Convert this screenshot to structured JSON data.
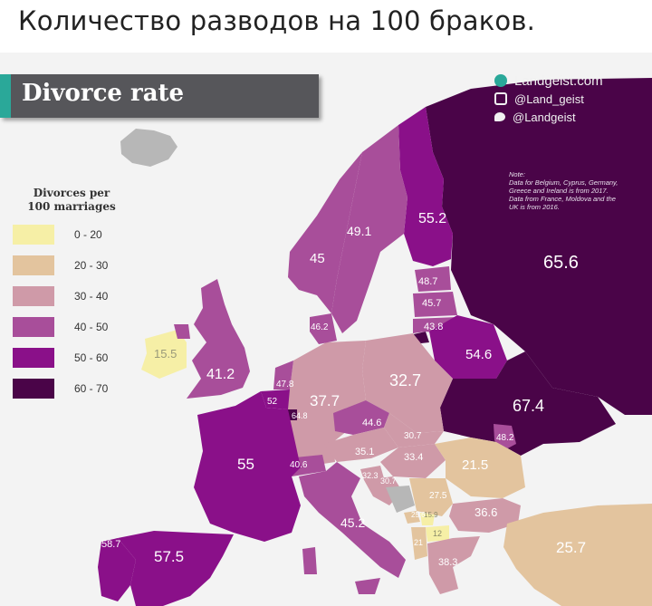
{
  "caption": "Количество разводов на 100 браков.",
  "banner": {
    "title": "Divorce rate"
  },
  "brand": {
    "site": "Landgeist.com",
    "handles": [
      {
        "icon": "instagram-icon",
        "text": "@Land_geist"
      },
      {
        "icon": "twitter-icon",
        "text": "@Landgeist"
      }
    ]
  },
  "note": {
    "heading": "Note:",
    "lines": [
      "Data for Belgium, Cyprus, Germany,",
      "Greece and Ireland is from 2017.",
      "Data from France, Moldova and the",
      "UK is from 2016."
    ]
  },
  "legend": {
    "title_line1": "Divorces per",
    "title_line2": "100 marriages",
    "items": [
      {
        "label": "0 - 20",
        "color": "#f6efa6"
      },
      {
        "label": "20 - 30",
        "color": "#e3c49e"
      },
      {
        "label": "30 - 40",
        "color": "#cf9aa8"
      },
      {
        "label": "40 - 50",
        "color": "#a84e9a"
      },
      {
        "label": "50 - 60",
        "color": "#8a1089"
      },
      {
        "label": "60 - 70",
        "color": "#4a0448"
      }
    ]
  },
  "countries": {
    "russia": "65.6",
    "ukraine": "67.4",
    "belarus": "54.6",
    "finland": "55.2",
    "sweden": "49.1",
    "norway": "45",
    "estonia": "48.7",
    "latvia": "45.7",
    "lithuania": "43.8",
    "denmark": "46.2",
    "ireland": "15.5",
    "uk": "41.2",
    "netherlands": "47.8",
    "belgium": "52",
    "luxembourg": "64.8",
    "france": "55",
    "germany": "37.7",
    "poland": "32.7",
    "czechia": "44.6",
    "slovakia": "30.7",
    "moldova": "48.2",
    "austria": "35.1",
    "hungary": "33.4",
    "romania": "21.5",
    "switzerland": "40.6",
    "slovenia": "32.3",
    "croatia": "30.7",
    "serbia": "27.5",
    "montenegro": "25.6",
    "kosovo": "15.9",
    "north_macedonia": "12",
    "albania": "21",
    "bulgaria": "36.6",
    "greece": "38.3",
    "italy": "45.2",
    "portugal": "58.7",
    "spain": "57.5",
    "turkey": "25.7"
  }
}
